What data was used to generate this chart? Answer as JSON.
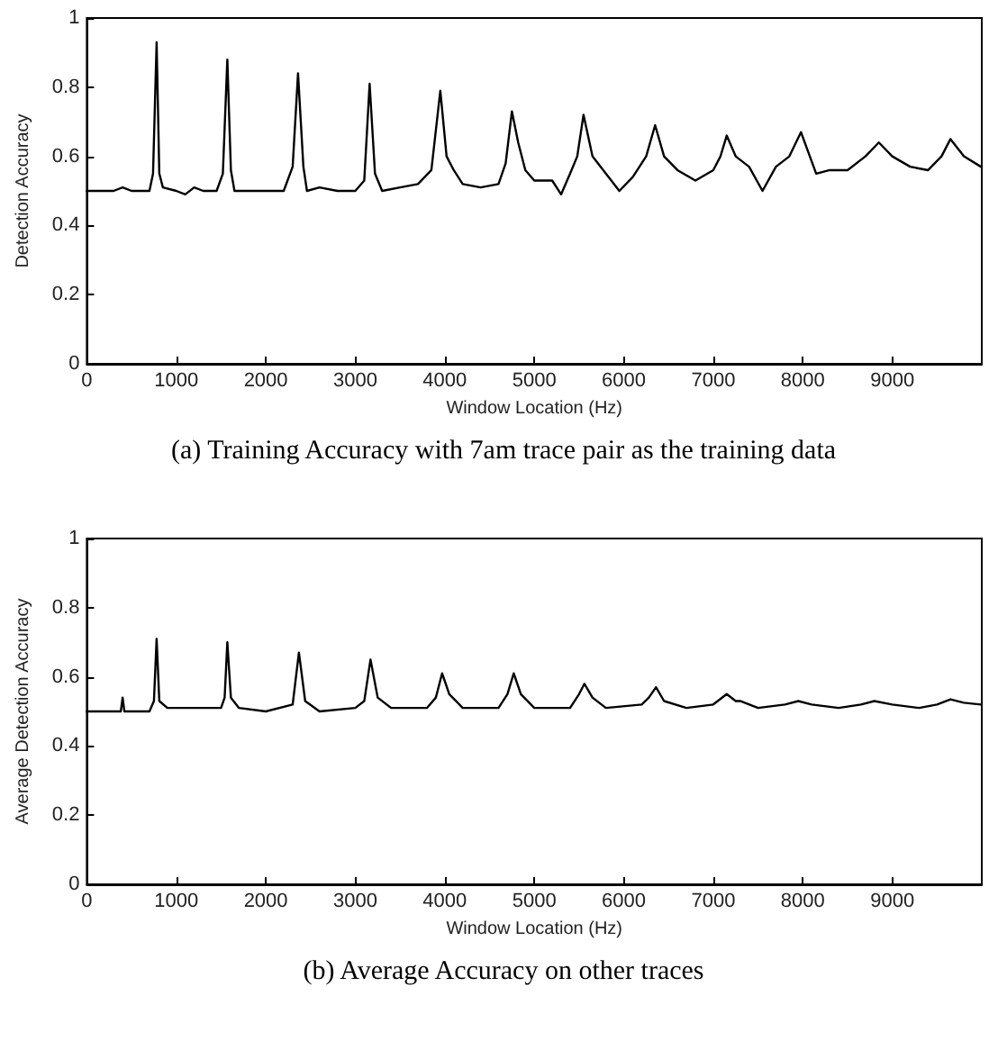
{
  "chart_data": [
    {
      "type": "line",
      "xlabel": "Window Location (Hz)",
      "ylabel": "Detection Accuracy",
      "annotations": [
        "(a) Training Accuracy with 7am trace pair as the training data"
      ],
      "series": [
        {
          "color": "#000000",
          "x": [
            0,
            300,
            400,
            500,
            700,
            740,
            780,
            810,
            850,
            1000,
            1100,
            1200,
            1300,
            1450,
            1520,
            1570,
            1610,
            1650,
            1800,
            2000,
            2100,
            2200,
            2300,
            2360,
            2420,
            2460,
            2600,
            2800,
            3000,
            3100,
            3160,
            3220,
            3300,
            3500,
            3700,
            3850,
            3950,
            4020,
            4100,
            4200,
            4400,
            4600,
            4680,
            4750,
            4820,
            4900,
            5000,
            5200,
            5300,
            5400,
            5480,
            5550,
            5650,
            5800,
            5950,
            6100,
            6250,
            6350,
            6450,
            6600,
            6800,
            7000,
            7080,
            7150,
            7250,
            7400,
            7550,
            7700,
            7850,
            7980,
            8050,
            8150,
            8300,
            8500,
            8700,
            8850,
            9000,
            9200,
            9400,
            9550,
            9650,
            9800,
            9990
          ],
          "values": [
            0.5,
            0.5,
            0.51,
            0.5,
            0.5,
            0.55,
            0.93,
            0.55,
            0.51,
            0.5,
            0.49,
            0.51,
            0.5,
            0.5,
            0.55,
            0.88,
            0.56,
            0.5,
            0.5,
            0.5,
            0.5,
            0.5,
            0.57,
            0.84,
            0.57,
            0.5,
            0.51,
            0.5,
            0.5,
            0.53,
            0.81,
            0.55,
            0.5,
            0.51,
            0.52,
            0.56,
            0.79,
            0.6,
            0.56,
            0.52,
            0.51,
            0.52,
            0.58,
            0.73,
            0.64,
            0.56,
            0.53,
            0.53,
            0.49,
            0.55,
            0.6,
            0.72,
            0.6,
            0.55,
            0.5,
            0.54,
            0.6,
            0.69,
            0.6,
            0.56,
            0.53,
            0.56,
            0.6,
            0.66,
            0.6,
            0.57,
            0.5,
            0.57,
            0.6,
            0.67,
            0.62,
            0.55,
            0.56,
            0.56,
            0.6,
            0.64,
            0.6,
            0.57,
            0.56,
            0.6,
            0.65,
            0.6,
            0.57
          ]
        }
      ],
      "xlim": [
        0,
        10000
      ],
      "xticks": [
        0,
        1000,
        2000,
        3000,
        4000,
        5000,
        6000,
        7000,
        8000,
        9000
      ],
      "ylim": [
        0,
        1
      ],
      "yticks": [
        0,
        0.2,
        0.4,
        0.6,
        0.8,
        1
      ],
      "grid": false,
      "marker": "none",
      "line_style": "solid"
    },
    {
      "type": "line",
      "xlabel": "Window Location (Hz)",
      "ylabel": "Average Detection Accuracy",
      "annotations": [
        "(b) Average Accuracy on other traces"
      ],
      "series": [
        {
          "color": "#000000",
          "x": [
            0,
            380,
            400,
            420,
            700,
            750,
            780,
            810,
            900,
            1200,
            1500,
            1540,
            1570,
            1610,
            1700,
            2000,
            2300,
            2370,
            2440,
            2600,
            3000,
            3100,
            3170,
            3250,
            3400,
            3800,
            3900,
            3970,
            4050,
            4200,
            4600,
            4700,
            4770,
            4850,
            5000,
            5400,
            5500,
            5560,
            5650,
            5800,
            6200,
            6280,
            6360,
            6450,
            6700,
            7000,
            7150,
            7250,
            7300,
            7500,
            7800,
            7950,
            8100,
            8400,
            8650,
            8800,
            9000,
            9300,
            9500,
            9650,
            9800,
            9990
          ],
          "values": [
            0.5,
            0.5,
            0.54,
            0.5,
            0.5,
            0.53,
            0.71,
            0.53,
            0.51,
            0.51,
            0.51,
            0.54,
            0.7,
            0.54,
            0.51,
            0.5,
            0.52,
            0.67,
            0.53,
            0.5,
            0.51,
            0.53,
            0.65,
            0.54,
            0.51,
            0.51,
            0.54,
            0.61,
            0.55,
            0.51,
            0.51,
            0.55,
            0.61,
            0.55,
            0.51,
            0.51,
            0.55,
            0.58,
            0.54,
            0.51,
            0.52,
            0.54,
            0.57,
            0.53,
            0.51,
            0.52,
            0.55,
            0.53,
            0.53,
            0.51,
            0.52,
            0.53,
            0.52,
            0.51,
            0.52,
            0.53,
            0.52,
            0.51,
            0.52,
            0.535,
            0.525,
            0.52
          ]
        }
      ],
      "xlim": [
        0,
        10000
      ],
      "xticks": [
        0,
        1000,
        2000,
        3000,
        4000,
        5000,
        6000,
        7000,
        8000,
        9000
      ],
      "ylim": [
        0,
        1
      ],
      "yticks": [
        0,
        0.2,
        0.4,
        0.6,
        0.8,
        1
      ],
      "grid": false,
      "marker": "none",
      "line_style": "solid"
    }
  ]
}
